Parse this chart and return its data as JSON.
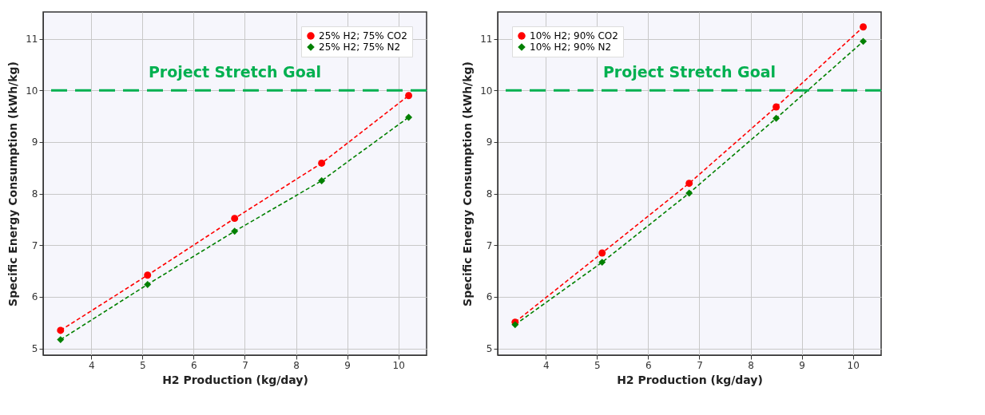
{
  "chart_data": [
    {
      "type": "line",
      "xlabel": "H2 Production (kg/day)",
      "ylabel": "Specific Energy Consumption (kWh/kg)",
      "x": [
        3.4,
        5.1,
        6.8,
        8.5,
        10.2
      ],
      "series": [
        {
          "name": "25% H2; 75% CO2",
          "color": "#ff0000",
          "marker": "circle",
          "values": [
            5.35,
            6.42,
            7.52,
            8.59,
            9.9
          ]
        },
        {
          "name": "25% H2; 75% N2",
          "color": "#008000",
          "marker": "diamond",
          "values": [
            5.17,
            6.24,
            7.27,
            8.25,
            9.48
          ]
        }
      ],
      "xlim": [
        3.06,
        10.55
      ],
      "xticks": [
        4,
        5,
        6,
        7,
        8,
        9,
        10
      ],
      "ylim": [
        4.87,
        11.52
      ],
      "yticks": [
        5,
        6,
        7,
        8,
        9,
        10,
        11
      ],
      "ref_lines": [
        {
          "axis": "y",
          "value": 10,
          "label": "Project Stretch Goal",
          "color": "#00b050",
          "line_style": "dashed"
        }
      ],
      "grid": true,
      "legend": "top right",
      "line_style": "dashed"
    },
    {
      "type": "line",
      "xlabel": "H2 Production (kg/day)",
      "ylabel": "Specific Energy Consumption (kWh/kg)",
      "x": [
        3.4,
        5.1,
        6.8,
        8.5,
        10.2
      ],
      "series": [
        {
          "name": "10% H2; 90% CO2",
          "color": "#ff0000",
          "marker": "circle",
          "values": [
            5.51,
            6.85,
            8.2,
            9.68,
            11.23
          ]
        },
        {
          "name": "10% H2; 90% N2",
          "color": "#008000",
          "marker": "diamond",
          "values": [
            5.46,
            6.67,
            8.01,
            9.46,
            10.95
          ]
        }
      ],
      "xlim": [
        3.06,
        10.55
      ],
      "xticks": [
        4,
        5,
        6,
        7,
        8,
        9,
        10
      ],
      "ylim": [
        4.87,
        11.52
      ],
      "yticks": [
        5,
        6,
        7,
        8,
        9,
        10,
        11
      ],
      "ref_lines": [
        {
          "axis": "y",
          "value": 10,
          "label": "Project Stretch Goal",
          "color": "#00b050",
          "line_style": "dashed"
        }
      ],
      "grid": true,
      "legend": "top left",
      "line_style": "dashed"
    }
  ]
}
